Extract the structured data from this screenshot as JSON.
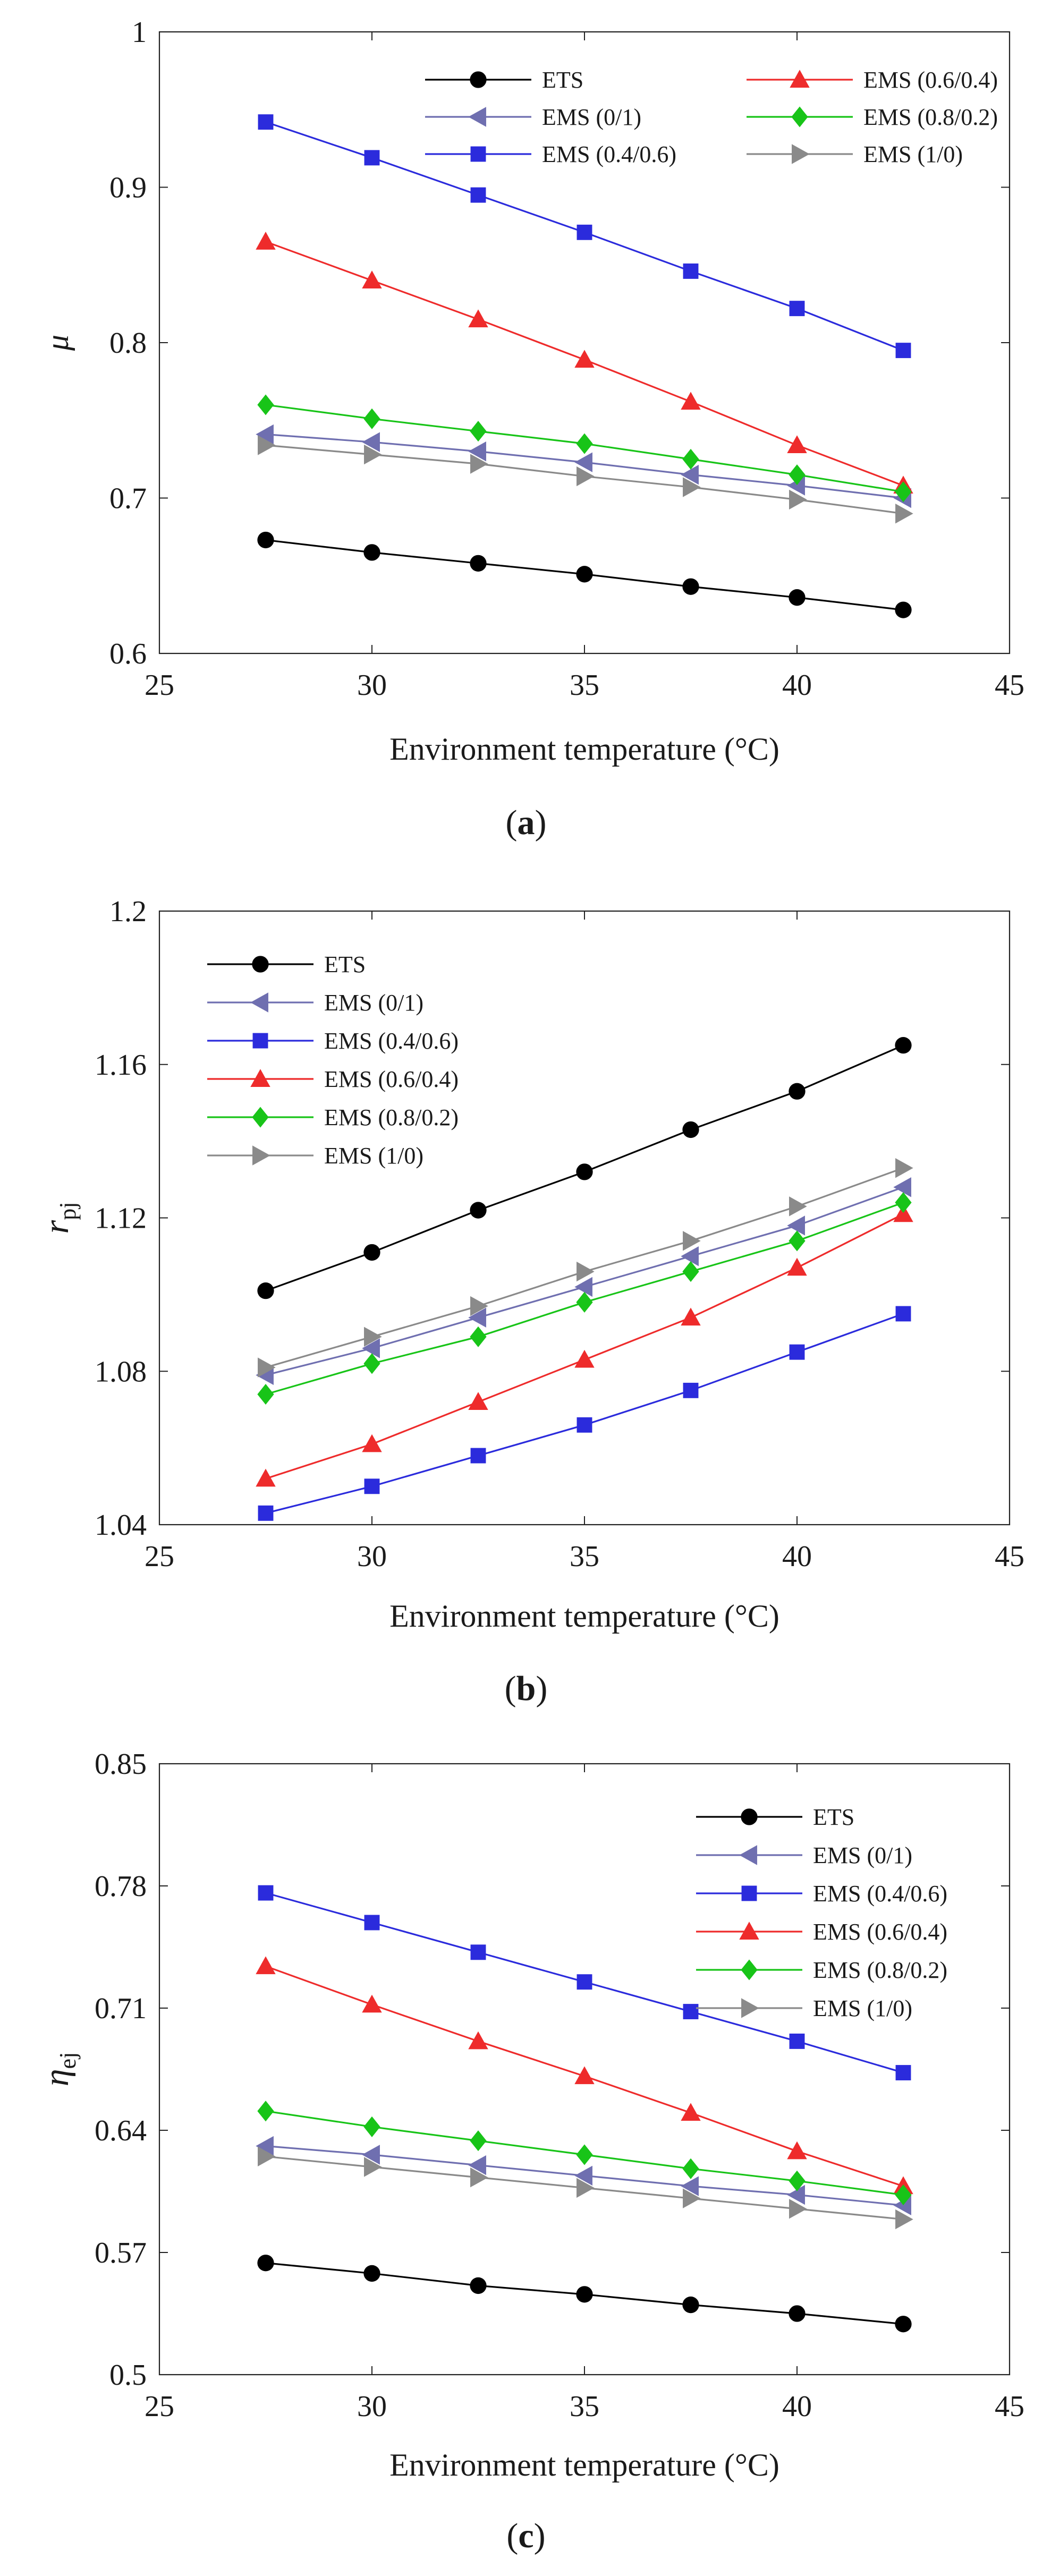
{
  "chart_data": [
    {
      "panel": "a",
      "type": "line",
      "xlabel": "Environment temperature (°C)",
      "ylabel": "μ",
      "xlim": [
        25,
        45
      ],
      "ylim": [
        0.6,
        1.0
      ],
      "xticks": [
        25,
        30,
        35,
        40,
        45
      ],
      "xtick_labels": [
        "25",
        "30",
        "35",
        "40",
        "45"
      ],
      "yticks": [
        0.6,
        0.7,
        0.8,
        0.9,
        1.0
      ],
      "ytick_labels": [
        "0.6",
        "0.7",
        "0.8",
        "0.9",
        "1"
      ],
      "legend_position": "top-right, two columns",
      "x": [
        27.5,
        30,
        32.5,
        35,
        37.5,
        40,
        42.5
      ],
      "series": [
        {
          "name": "ETS",
          "color": "#000000",
          "marker": "circle",
          "values": [
            0.673,
            0.665,
            0.658,
            0.651,
            0.643,
            0.636,
            0.628
          ]
        },
        {
          "name": "EMS (0/1)",
          "color": "#6f6fb0",
          "marker": "triangle-left",
          "values": [
            0.741,
            0.736,
            0.73,
            0.723,
            0.715,
            0.708,
            0.7
          ]
        },
        {
          "name": "EMS (0.4/0.6)",
          "color": "#2b2bdc",
          "marker": "square",
          "values": [
            0.942,
            0.919,
            0.895,
            0.871,
            0.846,
            0.822,
            0.795
          ]
        },
        {
          "name": "EMS (0.6/0.4)",
          "color": "#ee2b2b",
          "marker": "triangle-up",
          "values": [
            0.865,
            0.84,
            0.815,
            0.789,
            0.762,
            0.734,
            0.708
          ]
        },
        {
          "name": "EMS (0.8/0.2)",
          "color": "#18c418",
          "marker": "diamond",
          "values": [
            0.76,
            0.751,
            0.743,
            0.735,
            0.725,
            0.715,
            0.704
          ]
        },
        {
          "name": "EMS (1/0)",
          "color": "#8a8a8a",
          "marker": "triangle-right",
          "values": [
            0.734,
            0.728,
            0.722,
            0.714,
            0.707,
            0.699,
            0.69
          ]
        }
      ]
    },
    {
      "panel": "b",
      "type": "line",
      "xlabel": "Environment temperature (°C)",
      "ylabel": "r_pj",
      "ylabel_main": "r",
      "ylabel_sub": "pj",
      "xlim": [
        25,
        45
      ],
      "ylim": [
        1.04,
        1.2
      ],
      "xticks": [
        25,
        30,
        35,
        40,
        45
      ],
      "xtick_labels": [
        "25",
        "30",
        "35",
        "40",
        "45"
      ],
      "yticks": [
        1.04,
        1.08,
        1.12,
        1.16,
        1.2
      ],
      "ytick_labels": [
        "1.04",
        "1.08",
        "1.12",
        "1.16",
        "1.2"
      ],
      "legend_position": "top-left",
      "x": [
        27.5,
        30,
        32.5,
        35,
        37.5,
        40,
        42.5
      ],
      "series": [
        {
          "name": "ETS",
          "color": "#000000",
          "marker": "circle",
          "values": [
            1.101,
            1.111,
            1.122,
            1.132,
            1.143,
            1.153,
            1.165
          ]
        },
        {
          "name": "EMS (0/1)",
          "color": "#6f6fb0",
          "marker": "triangle-left",
          "values": [
            1.079,
            1.086,
            1.094,
            1.102,
            1.11,
            1.118,
            1.128
          ]
        },
        {
          "name": "EMS (0.4/0.6)",
          "color": "#2b2bdc",
          "marker": "square",
          "values": [
            1.043,
            1.05,
            1.058,
            1.066,
            1.075,
            1.085,
            1.095
          ]
        },
        {
          "name": "EMS (0.6/0.4)",
          "color": "#ee2b2b",
          "marker": "triangle-up",
          "values": [
            1.052,
            1.061,
            1.072,
            1.083,
            1.094,
            1.107,
            1.121
          ]
        },
        {
          "name": "EMS (0.8/0.2)",
          "color": "#18c418",
          "marker": "diamond",
          "values": [
            1.074,
            1.082,
            1.089,
            1.098,
            1.106,
            1.114,
            1.124
          ]
        },
        {
          "name": "EMS (1/0)",
          "color": "#8a8a8a",
          "marker": "triangle-right",
          "values": [
            1.081,
            1.089,
            1.097,
            1.106,
            1.114,
            1.123,
            1.133
          ]
        }
      ]
    },
    {
      "panel": "c",
      "type": "line",
      "xlabel": "Environment temperature (°C)",
      "ylabel": "η_ej",
      "ylabel_main": "η",
      "ylabel_sub": "ej",
      "xlim": [
        25,
        45
      ],
      "ylim": [
        0.5,
        0.85
      ],
      "xticks": [
        25,
        30,
        35,
        40,
        45
      ],
      "xtick_labels": [
        "25",
        "30",
        "35",
        "40",
        "45"
      ],
      "yticks": [
        0.5,
        0.57,
        0.64,
        0.71,
        0.78,
        0.85
      ],
      "ytick_labels": [
        "0.5",
        "0.57",
        "0.64",
        "0.71",
        "0.78",
        "0.85"
      ],
      "legend_position": "top-right",
      "x": [
        27.5,
        30,
        32.5,
        35,
        37.5,
        40,
        42.5
      ],
      "series": [
        {
          "name": "ETS",
          "color": "#000000",
          "marker": "circle",
          "values": [
            0.564,
            0.558,
            0.551,
            0.546,
            0.54,
            0.535,
            0.529
          ]
        },
        {
          "name": "EMS (0/1)",
          "color": "#6f6fb0",
          "marker": "triangle-left",
          "values": [
            0.631,
            0.626,
            0.62,
            0.614,
            0.608,
            0.603,
            0.597
          ]
        },
        {
          "name": "EMS (0.4/0.6)",
          "color": "#2b2bdc",
          "marker": "square",
          "values": [
            0.776,
            0.759,
            0.742,
            0.725,
            0.708,
            0.691,
            0.673
          ]
        },
        {
          "name": "EMS (0.6/0.4)",
          "color": "#ee2b2b",
          "marker": "triangle-up",
          "values": [
            0.734,
            0.712,
            0.691,
            0.671,
            0.65,
            0.628,
            0.608
          ]
        },
        {
          "name": "EMS (0.8/0.2)",
          "color": "#18c418",
          "marker": "diamond",
          "values": [
            0.651,
            0.642,
            0.634,
            0.626,
            0.618,
            0.611,
            0.603
          ]
        },
        {
          "name": "EMS (1/0)",
          "color": "#8a8a8a",
          "marker": "triangle-right",
          "values": [
            0.625,
            0.619,
            0.613,
            0.607,
            0.601,
            0.595,
            0.589
          ]
        }
      ]
    }
  ]
}
